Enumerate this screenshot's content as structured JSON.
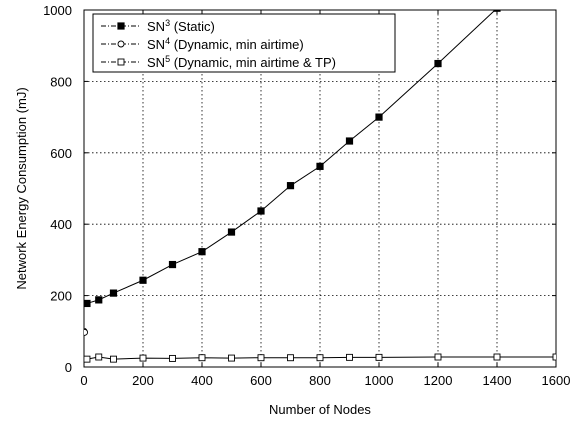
{
  "chart_data": {
    "type": "line",
    "xlabel": "Number of Nodes",
    "ylabel": "Network Energy Consumption (mJ)",
    "xlim": [
      0,
      1600
    ],
    "ylim": [
      0,
      1000
    ],
    "x_ticks": [
      0,
      200,
      400,
      600,
      800,
      1000,
      1200,
      1400,
      1600
    ],
    "y_ticks": [
      0,
      200,
      400,
      600,
      800,
      1000
    ],
    "grid": true,
    "legend_position": "top-left",
    "series": [
      {
        "name": "SN",
        "sup": "3",
        "desc": " (Static)",
        "marker": "filled-square",
        "x": [
          10,
          50,
          100,
          200,
          300,
          400,
          500,
          600,
          700,
          800,
          900,
          1000,
          1200,
          1400
        ],
        "y": [
          178,
          188,
          207,
          243,
          287,
          323,
          378,
          437,
          508,
          562,
          633,
          700,
          850,
          1005
        ]
      },
      {
        "name": "SN",
        "sup": "4",
        "desc": " (Dynamic, min airtime)",
        "marker": "open-circle",
        "x": [
          0,
          2
        ],
        "y": [
          100,
          97
        ]
      },
      {
        "name": "SN",
        "sup": "5",
        "desc": " (Dynamic, min airtime & TP)",
        "marker": "open-square",
        "x": [
          10,
          50,
          100,
          200,
          300,
          400,
          500,
          600,
          700,
          800,
          900,
          1000,
          1200,
          1400,
          1600
        ],
        "y": [
          22,
          28,
          22,
          25,
          24,
          26,
          25,
          26,
          26,
          26,
          27,
          27,
          28,
          28,
          28
        ]
      }
    ]
  }
}
